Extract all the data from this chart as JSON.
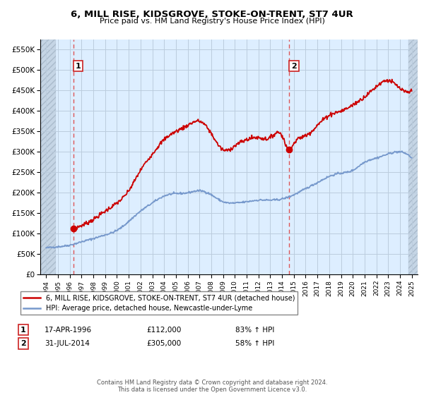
{
  "title": "6, MILL RISE, KIDSGROVE, STOKE-ON-TRENT, ST7 4UR",
  "subtitle": "Price paid vs. HM Land Registry's House Price Index (HPI)",
  "legend_line1": "6, MILL RISE, KIDSGROVE, STOKE-ON-TRENT, ST7 4UR (detached house)",
  "legend_line2": "HPI: Average price, detached house, Newcastle-under-Lyme",
  "annotation1_label": "1",
  "annotation1_date": "17-APR-1996",
  "annotation1_price": "£112,000",
  "annotation1_hpi": "83% ↑ HPI",
  "annotation2_label": "2",
  "annotation2_date": "31-JUL-2014",
  "annotation2_price": "£305,000",
  "annotation2_hpi": "58% ↑ HPI",
  "footer": "Contains HM Land Registry data © Crown copyright and database right 2024.\nThis data is licensed under the Open Government Licence v3.0.",
  "sale1_x": 1996.29,
  "sale1_y": 112000,
  "sale2_x": 2014.58,
  "sale2_y": 305000,
  "red_color": "#cc0000",
  "blue_color": "#7799cc",
  "dashed_color": "#dd4444",
  "grid_color": "#bbccdd",
  "background_color": "#ddeeff",
  "hatch_color": "#c8d8e8",
  "ylim": [
    0,
    575000
  ],
  "xlim": [
    1993.5,
    2025.5
  ],
  "ytick_values": [
    0,
    50000,
    100000,
    150000,
    200000,
    250000,
    300000,
    350000,
    400000,
    450000,
    500000,
    550000
  ],
  "xtick_values": [
    1994,
    1995,
    1996,
    1997,
    1998,
    1999,
    2000,
    2001,
    2002,
    2003,
    2004,
    2005,
    2006,
    2007,
    2008,
    2009,
    2010,
    2011,
    2012,
    2013,
    2014,
    2015,
    2016,
    2017,
    2018,
    2019,
    2020,
    2021,
    2022,
    2023,
    2024,
    2025
  ]
}
